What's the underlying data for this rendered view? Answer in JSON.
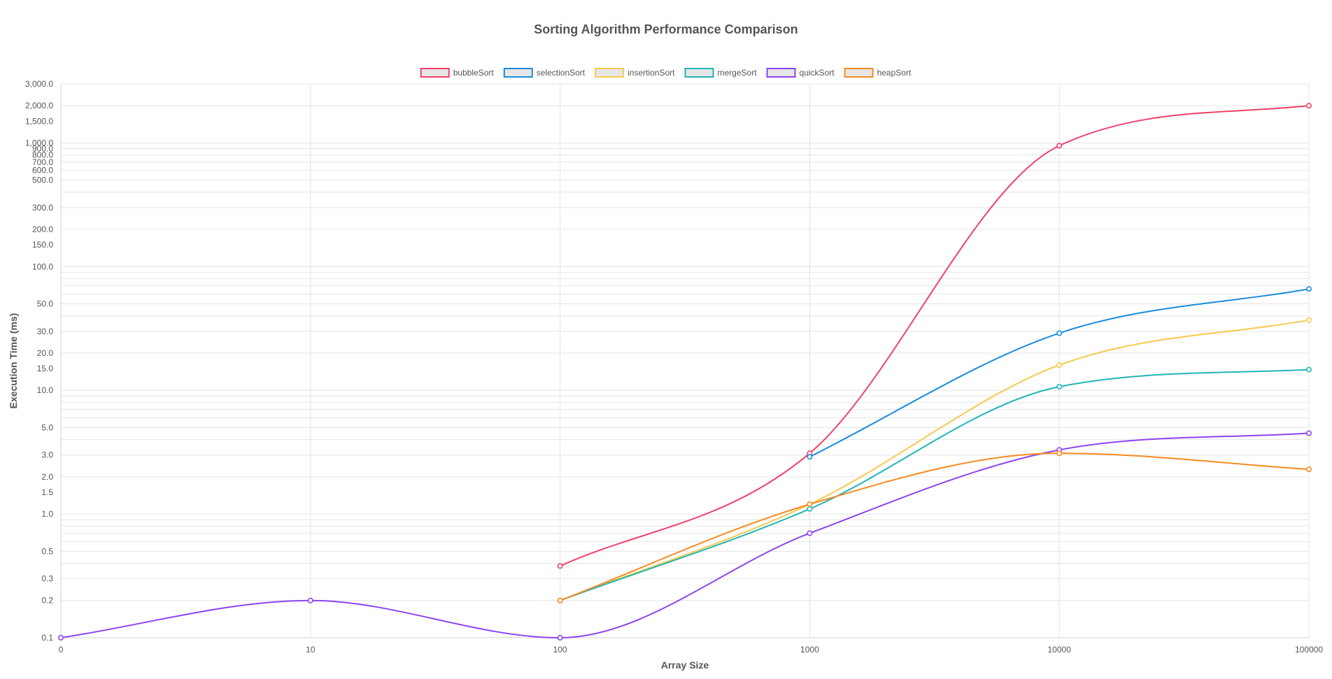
{
  "chart_data": {
    "type": "line",
    "title": "Sorting Algorithm Performance Comparison",
    "xlabel": "Array Size",
    "ylabel": "Execution Time (ms)",
    "x_scale": "category",
    "y_scale": "log",
    "ylim": [
      0.1,
      3000
    ],
    "grid": true,
    "legend_position": "top-center",
    "categories": [
      "0",
      "10",
      "100",
      "1000",
      "10000",
      "100000"
    ],
    "y_tick_labels": [
      "0.1",
      "0.2",
      "0.3",
      "0.5",
      "1.0",
      "1.5",
      "2.0",
      "3.0",
      "5.0",
      "10.0",
      "15.0",
      "20.0",
      "30.0",
      "50.0",
      "100.0",
      "150.0",
      "200.0",
      "300.0",
      "500.0",
      "600.0",
      "700.0",
      "800.0",
      "900.0",
      "1,000.0",
      "1,500.0",
      "2,000.0",
      "3,000.0"
    ],
    "y_tick_values": [
      0.1,
      0.2,
      0.3,
      0.5,
      1,
      1.5,
      2,
      3,
      5,
      10,
      15,
      20,
      30,
      50,
      100,
      150,
      200,
      300,
      500,
      600,
      700,
      800,
      900,
      1000,
      1500,
      2000,
      3000
    ],
    "series": [
      {
        "name": "bubbleSort",
        "color": "#f0416b",
        "values": [
          null,
          null,
          0.38,
          3.1,
          950,
          2000
        ]
      },
      {
        "name": "selectionSort",
        "color": "#1a8cdc",
        "values": [
          null,
          null,
          null,
          2.9,
          29,
          66
        ]
      },
      {
        "name": "insertionSort",
        "color": "#f7c94e",
        "values": [
          null,
          null,
          0.2,
          1.2,
          16,
          37
        ]
      },
      {
        "name": "mergeSort",
        "color": "#22b5b5",
        "values": [
          null,
          null,
          0.2,
          1.1,
          10.7,
          14.7
        ]
      },
      {
        "name": "quickSort",
        "color": "#8b45f0",
        "values": [
          0.1,
          0.2,
          0.1,
          0.7,
          3.3,
          4.5
        ]
      },
      {
        "name": "heapSort",
        "color": "#f58b1f",
        "values": [
          null,
          null,
          0.2,
          1.2,
          3.1,
          2.3
        ]
      }
    ]
  }
}
